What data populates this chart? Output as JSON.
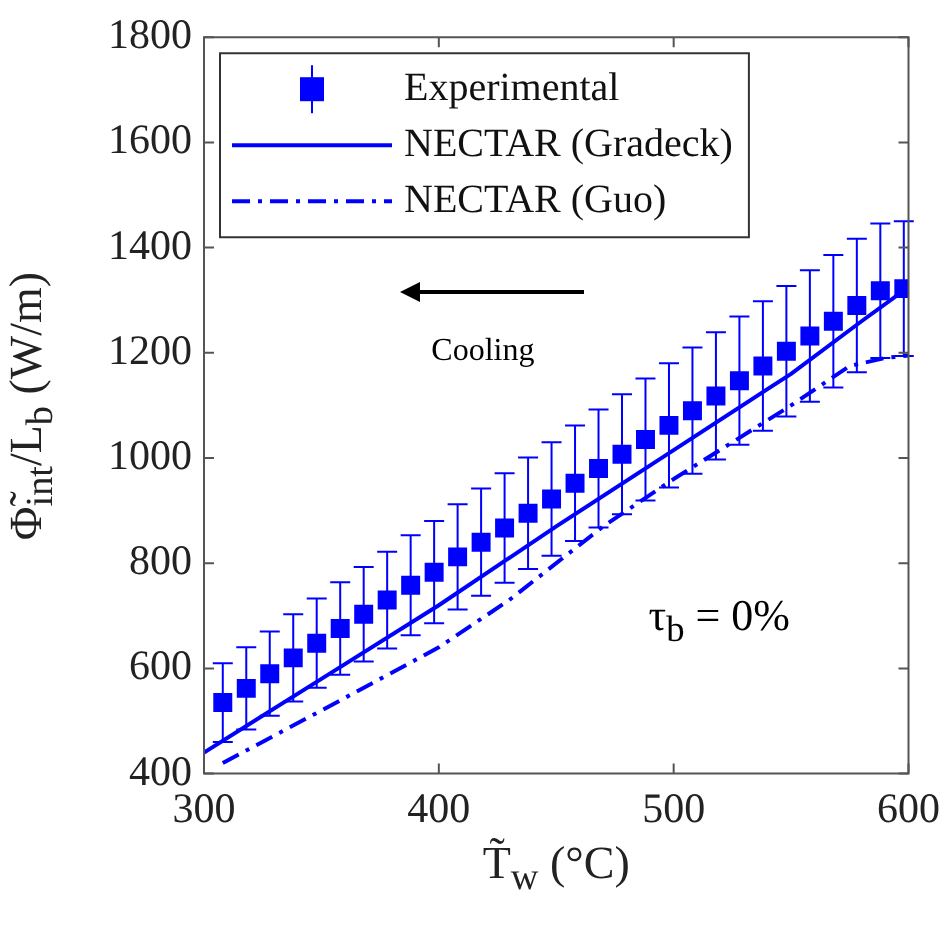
{
  "chart_data": {
    "type": "scatter",
    "xlabel": "T̃$_{w}$ (°C)",
    "ylabel": "Φ̃$_{int}$/L$_{b}$ (W/m)",
    "xlim": [
      300,
      600
    ],
    "xticks": [
      300,
      400,
      500,
      600
    ],
    "ylim": [
      400,
      1800
    ],
    "yticks": [
      400,
      600,
      800,
      1000,
      1200,
      1400,
      1600,
      1800
    ],
    "grid": false,
    "legend": "top left",
    "series": [
      {
        "name": "Experimental",
        "type": "scatter",
        "color": "#0000ff",
        "marker": "square",
        "x": [
          308,
          318,
          328,
          338,
          348,
          358,
          368,
          378,
          388,
          398,
          408,
          418,
          428,
          438,
          448,
          458,
          468,
          478,
          488,
          498,
          508,
          518,
          528,
          538,
          548,
          558,
          568,
          578,
          588,
          598
        ],
        "values": [
          535,
          562,
          590,
          620,
          648,
          676,
          703,
          730,
          758,
          783,
          812,
          840,
          867,
          895,
          922,
          952,
          980,
          1007,
          1035,
          1062,
          1090,
          1118,
          1147,
          1175,
          1203,
          1232,
          1260,
          1290,
          1318,
          1322
        ],
        "errors": [
          75,
          78,
          80,
          83,
          85,
          88,
          90,
          92,
          95,
          97,
          100,
          102,
          104,
          106,
          108,
          110,
          112,
          114,
          116,
          118,
          120,
          121,
          122,
          123,
          124,
          125,
          126,
          127,
          128,
          128
        ]
      },
      {
        "name": "NECTAR (Gradeck)",
        "type": "line",
        "color": "#0000ff",
        "line_style": "solid",
        "marker": "none",
        "x": [
          300,
          350,
          400,
          450,
          500,
          550,
          580,
          600
        ],
        "values": [
          440,
          580,
          720,
          870,
          1015,
          1160,
          1260,
          1325
        ]
      },
      {
        "name": "NECTAR (Guo)",
        "type": "line",
        "color": "#0000ff",
        "line_style": "dashdot",
        "marker": "none",
        "x": [
          308,
          350,
          400,
          430,
          470,
          500,
          550,
          575,
          590,
          600
        ],
        "values": [
          420,
          520,
          640,
          730,
          870,
          960,
          1100,
          1175,
          1190,
          1195
        ]
      }
    ],
    "annotations": [
      "Cooling",
      "τ$_{b}$ = 0%"
    ]
  }
}
